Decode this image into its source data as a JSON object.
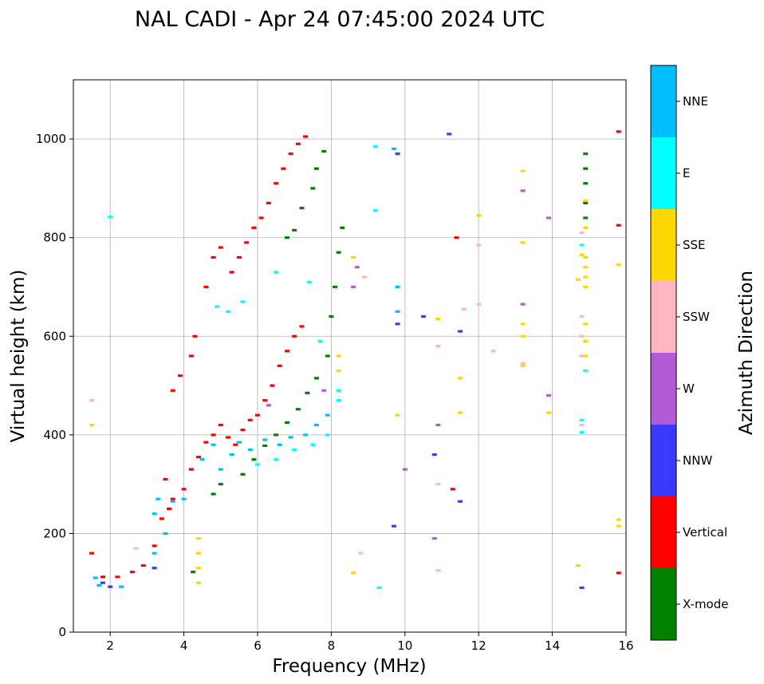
{
  "chart_data": {
    "type": "scatter",
    "title": "NAL CADI - Apr 24 07:45:00 2024 UTC",
    "xlabel": "Frequency (MHz)",
    "ylabel": "Virtual height (km)",
    "xlim": [
      1,
      16
    ],
    "ylim": [
      0,
      1120
    ],
    "xticks": [
      2,
      4,
      6,
      8,
      10,
      12,
      14,
      16
    ],
    "yticks": [
      0,
      200,
      400,
      600,
      800,
      1000
    ],
    "grid": true,
    "colorbar": {
      "label": "Azimuth Direction",
      "placement": "right",
      "categories": [
        "X-mode",
        "Vertical",
        "NNW",
        "W",
        "SSW",
        "SSE",
        "E",
        "NNE"
      ],
      "colors": [
        "#008000",
        "#ff0000",
        "#3939ff",
        "#b35bd6",
        "#ffb6c1",
        "#ffd700",
        "#00ffff",
        "#00bfff"
      ]
    },
    "series": [
      {
        "name": "X-mode",
        "points": [
          [
            4.25,
            122
          ],
          [
            5.6,
            320
          ],
          [
            5.9,
            350
          ],
          [
            6.2,
            378
          ],
          [
            6.5,
            400
          ],
          [
            6.8,
            425
          ],
          [
            7.1,
            452
          ],
          [
            7.35,
            485
          ],
          [
            7.6,
            515
          ],
          [
            7.9,
            560
          ],
          [
            8.0,
            640
          ],
          [
            8.1,
            700
          ],
          [
            8.2,
            770
          ],
          [
            8.3,
            820
          ],
          [
            7.2,
            860
          ],
          [
            7.5,
            900
          ],
          [
            7.6,
            940
          ],
          [
            7.8,
            975
          ],
          [
            6.8,
            800
          ],
          [
            7.0,
            815
          ],
          [
            4.8,
            280
          ],
          [
            5.0,
            300
          ],
          [
            14.9,
            970
          ],
          [
            14.9,
            940
          ],
          [
            14.9,
            910
          ],
          [
            14.9,
            870
          ],
          [
            14.9,
            840
          ]
        ]
      },
      {
        "name": "Vertical",
        "points": [
          [
            1.5,
            160
          ],
          [
            1.8,
            112
          ],
          [
            2.2,
            112
          ],
          [
            2.6,
            122
          ],
          [
            2.9,
            135
          ],
          [
            3.2,
            175
          ],
          [
            3.4,
            230
          ],
          [
            3.6,
            250
          ],
          [
            3.5,
            310
          ],
          [
            3.7,
            270
          ],
          [
            4.0,
            290
          ],
          [
            4.2,
            330
          ],
          [
            4.4,
            355
          ],
          [
            4.6,
            385
          ],
          [
            4.8,
            400
          ],
          [
            5.0,
            420
          ],
          [
            5.2,
            395
          ],
          [
            5.4,
            380
          ],
          [
            5.6,
            410
          ],
          [
            5.8,
            430
          ],
          [
            6.0,
            440
          ],
          [
            6.2,
            470
          ],
          [
            6.4,
            500
          ],
          [
            6.6,
            540
          ],
          [
            6.8,
            570
          ],
          [
            7.0,
            600
          ],
          [
            7.2,
            620
          ],
          [
            4.2,
            560
          ],
          [
            4.3,
            600
          ],
          [
            3.9,
            520
          ],
          [
            3.7,
            490
          ],
          [
            4.6,
            700
          ],
          [
            4.8,
            760
          ],
          [
            5.0,
            780
          ],
          [
            5.3,
            730
          ],
          [
            5.5,
            760
          ],
          [
            5.7,
            790
          ],
          [
            5.9,
            820
          ],
          [
            6.1,
            840
          ],
          [
            6.3,
            870
          ],
          [
            6.5,
            910
          ],
          [
            6.7,
            940
          ],
          [
            6.9,
            970
          ],
          [
            7.1,
            990
          ],
          [
            7.3,
            1005
          ],
          [
            11.3,
            290
          ],
          [
            11.4,
            800
          ],
          [
            15.8,
            825
          ],
          [
            15.8,
            1015
          ],
          [
            15.8,
            120
          ]
        ]
      },
      {
        "name": "NNW",
        "points": [
          [
            1.8,
            100
          ],
          [
            2.0,
            92
          ],
          [
            3.2,
            130
          ],
          [
            9.8,
            625
          ],
          [
            9.8,
            970
          ],
          [
            10.5,
            640
          ],
          [
            11.2,
            1010
          ],
          [
            11.5,
            610
          ],
          [
            11.5,
            265
          ],
          [
            14.8,
            90
          ],
          [
            9.7,
            215
          ],
          [
            10.8,
            360
          ]
        ]
      },
      {
        "name": "W",
        "points": [
          [
            8.6,
            700
          ],
          [
            8.7,
            740
          ],
          [
            7.8,
            490
          ],
          [
            6.3,
            460
          ],
          [
            10.0,
            330
          ],
          [
            10.8,
            190
          ],
          [
            10.9,
            420
          ],
          [
            13.2,
            665
          ],
          [
            13.2,
            895
          ],
          [
            13.9,
            840
          ],
          [
            13.9,
            480
          ]
        ]
      },
      {
        "name": "SSW",
        "points": [
          [
            1.5,
            470
          ],
          [
            2.7,
            170
          ],
          [
            8.8,
            160
          ],
          [
            8.9,
            720
          ],
          [
            10.9,
            580
          ],
          [
            10.9,
            300
          ],
          [
            10.9,
            125
          ],
          [
            11.6,
            655
          ],
          [
            12.0,
            785
          ],
          [
            12.0,
            665
          ],
          [
            12.4,
            570
          ],
          [
            13.2,
            545
          ],
          [
            14.8,
            810
          ],
          [
            14.8,
            640
          ],
          [
            14.8,
            600
          ],
          [
            14.8,
            560
          ],
          [
            14.8,
            420
          ]
        ]
      },
      {
        "name": "SSE",
        "points": [
          [
            1.5,
            420
          ],
          [
            4.4,
            190
          ],
          [
            4.4,
            160
          ],
          [
            4.4,
            130
          ],
          [
            4.4,
            100
          ],
          [
            8.2,
            530
          ],
          [
            8.2,
            560
          ],
          [
            8.6,
            760
          ],
          [
            8.6,
            120
          ],
          [
            9.8,
            440
          ],
          [
            10.9,
            635
          ],
          [
            11.5,
            515
          ],
          [
            11.5,
            445
          ],
          [
            12.0,
            845
          ],
          [
            13.2,
            935
          ],
          [
            13.2,
            790
          ],
          [
            13.2,
            625
          ],
          [
            13.2,
            600
          ],
          [
            13.2,
            540
          ],
          [
            13.9,
            445
          ],
          [
            14.7,
            135
          ],
          [
            14.7,
            715
          ],
          [
            14.8,
            765
          ],
          [
            14.9,
            760
          ],
          [
            14.9,
            740
          ],
          [
            14.9,
            720
          ],
          [
            14.9,
            700
          ],
          [
            14.9,
            625
          ],
          [
            14.9,
            590
          ],
          [
            14.9,
            560
          ],
          [
            14.9,
            875
          ],
          [
            14.9,
            820
          ],
          [
            15.8,
            745
          ],
          [
            15.8,
            228
          ],
          [
            15.8,
            215
          ]
        ]
      },
      {
        "name": "E",
        "points": [
          [
            2.0,
            842
          ],
          [
            4.9,
            660
          ],
          [
            5.2,
            650
          ],
          [
            5.6,
            670
          ],
          [
            6.5,
            730
          ],
          [
            7.4,
            710
          ],
          [
            7.7,
            590
          ],
          [
            8.2,
            470
          ],
          [
            8.2,
            490
          ],
          [
            7.9,
            400
          ],
          [
            7.5,
            380
          ],
          [
            7.0,
            370
          ],
          [
            6.5,
            350
          ],
          [
            6.0,
            340
          ],
          [
            9.2,
            855
          ],
          [
            9.2,
            985
          ],
          [
            9.3,
            90
          ],
          [
            14.8,
            430
          ],
          [
            14.8,
            405
          ],
          [
            14.9,
            530
          ],
          [
            14.8,
            785
          ]
        ]
      },
      {
        "name": "NNE",
        "points": [
          [
            1.6,
            110
          ],
          [
            1.7,
            95
          ],
          [
            2.3,
            92
          ],
          [
            3.2,
            160
          ],
          [
            3.2,
            240
          ],
          [
            3.3,
            270
          ],
          [
            3.5,
            200
          ],
          [
            3.7,
            265
          ],
          [
            4.0,
            270
          ],
          [
            4.5,
            350
          ],
          [
            4.8,
            380
          ],
          [
            5.0,
            330
          ],
          [
            5.3,
            360
          ],
          [
            5.5,
            385
          ],
          [
            5.8,
            370
          ],
          [
            6.2,
            390
          ],
          [
            6.6,
            380
          ],
          [
            6.9,
            395
          ],
          [
            7.3,
            400
          ],
          [
            7.6,
            420
          ],
          [
            7.9,
            440
          ],
          [
            9.7,
            980
          ],
          [
            9.8,
            700
          ],
          [
            9.8,
            650
          ]
        ]
      }
    ]
  }
}
